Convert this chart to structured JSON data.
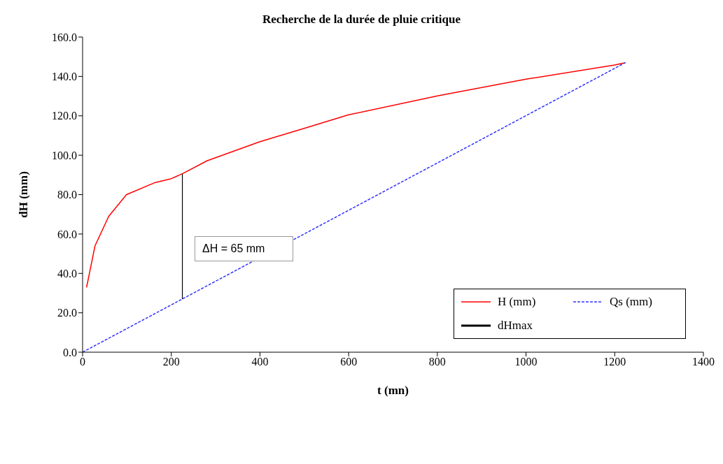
{
  "chart_data": {
    "type": "line",
    "title": "Recherche de la durée de pluie critique",
    "xlabel": "t (mn)",
    "ylabel": "dH (mm)",
    "xlim": [
      0,
      1400
    ],
    "xticks": [
      0,
      200,
      400,
      600,
      800,
      1000,
      1200,
      1400
    ],
    "ylim": [
      0,
      160
    ],
    "yticks": [
      {
        "value": 0,
        "label": "0.0"
      },
      {
        "value": 20,
        "label": "20.0"
      },
      {
        "value": 40,
        "label": "40.0"
      },
      {
        "value": 60,
        "label": "60.0"
      },
      {
        "value": 80,
        "label": "80.0"
      },
      {
        "value": 100,
        "label": "100.0"
      },
      {
        "value": 120,
        "label": "120.0"
      },
      {
        "value": 140,
        "label": "140.0"
      },
      {
        "value": 160,
        "label": "160.0"
      }
    ],
    "grid": false,
    "legend": "right",
    "marker": "none",
    "annotations": [
      "ΔH = 65 mm"
    ],
    "series": [
      {
        "name": "H (mm)",
        "color": "#ff0000",
        "line_style": "solid",
        "x": [
          9,
          28,
          59,
          99,
          162,
          200,
          225,
          281,
          400,
          502,
          600,
          800,
          1000,
          1200,
          1224
        ],
        "values": [
          32.9,
          54,
          69,
          80,
          86,
          88.1,
          90.6,
          97.2,
          106.9,
          113.8,
          120.5,
          130.1,
          138.6,
          145.8,
          147
        ]
      },
      {
        "name": "Qs (mm)",
        "color": "#3333ff",
        "line_style": "dashed",
        "x": [
          0,
          1224
        ],
        "values": [
          0,
          147
        ]
      },
      {
        "name": "dHmax",
        "type": "line",
        "color": "#000000",
        "line_style": "solid",
        "x": [
          225,
          225
        ],
        "values": [
          27,
          90.6
        ]
      }
    ]
  }
}
